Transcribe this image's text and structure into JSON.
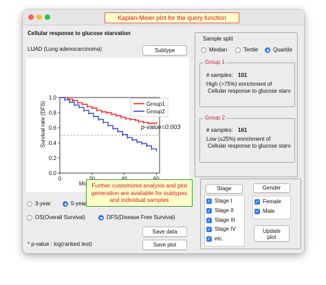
{
  "window": {
    "title": "Kaplan-Meier plot for the query function"
  },
  "panel": {
    "heading": "Cellular response to glucose starvation",
    "dataset": "LUAD (Lung adenocarcinoma)",
    "subtype_button": "Subtype"
  },
  "chart_data": {
    "type": "line",
    "xlabel": "Months",
    "ylabel": "Survival rate (DFS)",
    "xlim": [
      0,
      62
    ],
    "ylim": [
      0,
      1
    ],
    "x_ticks": [
      "0",
      "20",
      "40",
      "60"
    ],
    "y_ticks": [
      "0.0",
      "0.2",
      "0.4",
      "0.6",
      "0.8",
      "1.0"
    ],
    "reference_line": 0.5,
    "pvalue_text": "p-value=0.003",
    "legend_position": "top-right",
    "series": [
      {
        "name": "Group1",
        "color": "#ff0000",
        "x": [
          0,
          5,
          8,
          11,
          14,
          17,
          20,
          23,
          26,
          29,
          32,
          35,
          38,
          41,
          44,
          47,
          49,
          52,
          55,
          60
        ],
        "y": [
          1.0,
          0.98,
          0.96,
          0.93,
          0.91,
          0.88,
          0.86,
          0.83,
          0.81,
          0.8,
          0.78,
          0.76,
          0.74,
          0.72,
          0.71,
          0.7,
          0.68,
          0.67,
          0.66,
          0.66
        ]
      },
      {
        "name": "Group2",
        "color": "#1a2fcf",
        "x": [
          0,
          3,
          6,
          9,
          12,
          15,
          18,
          21,
          24,
          27,
          30,
          33,
          36,
          39,
          42,
          45,
          48,
          51,
          54,
          57,
          60
        ],
        "y": [
          1.0,
          0.97,
          0.94,
          0.9,
          0.87,
          0.83,
          0.79,
          0.75,
          0.71,
          0.67,
          0.63,
          0.59,
          0.55,
          0.51,
          0.47,
          0.44,
          0.41,
          0.39,
          0.36,
          0.32,
          0.3
        ]
      }
    ]
  },
  "duration": {
    "options": [
      "3-year",
      "5-year"
    ],
    "selected": "5-year"
  },
  "survival_type": {
    "options": [
      "OS(Overall Survival)",
      "DFS(Disease Free Survival)"
    ],
    "selected": "DFS(Disease Free Survival)"
  },
  "buttons": {
    "save_data": "Save data",
    "save_plot": "Save plot",
    "stage": "Stage",
    "gender": "Gender",
    "update": "Update\nplot"
  },
  "footnote": "* p-value : log(ranked test)",
  "sample_split": {
    "label": "Sample split",
    "options": [
      "Median",
      "Tertile",
      "Quartile"
    ],
    "selected": "Quartile"
  },
  "group1": {
    "title": "Group 1",
    "samples_label": "# samples:",
    "samples_value": "101",
    "line1": "High (>75%) enrichment of",
    "line2": "Cellular response to glucose starva"
  },
  "group2": {
    "title": "Group 2",
    "samples_label": "# samples:",
    "samples_value": "161",
    "line1": "Low (≤25%) enrichment of",
    "line2": "Cellular response to glucose starva"
  },
  "stages": [
    "Stage I",
    "Stage II",
    "Stage III",
    "Stage IV",
    "etc."
  ],
  "genders": [
    "Female",
    "Male"
  ],
  "tooltip": {
    "line1": "Further customized analysis and plot",
    "line2": "generation are available for subtypes",
    "line3": "and individual samples"
  },
  "colors": {
    "accent": "#2f7cf6",
    "alert_text": "#d02020",
    "title_bg": "#fefec8",
    "tooltip_border": "#3fa33f"
  }
}
